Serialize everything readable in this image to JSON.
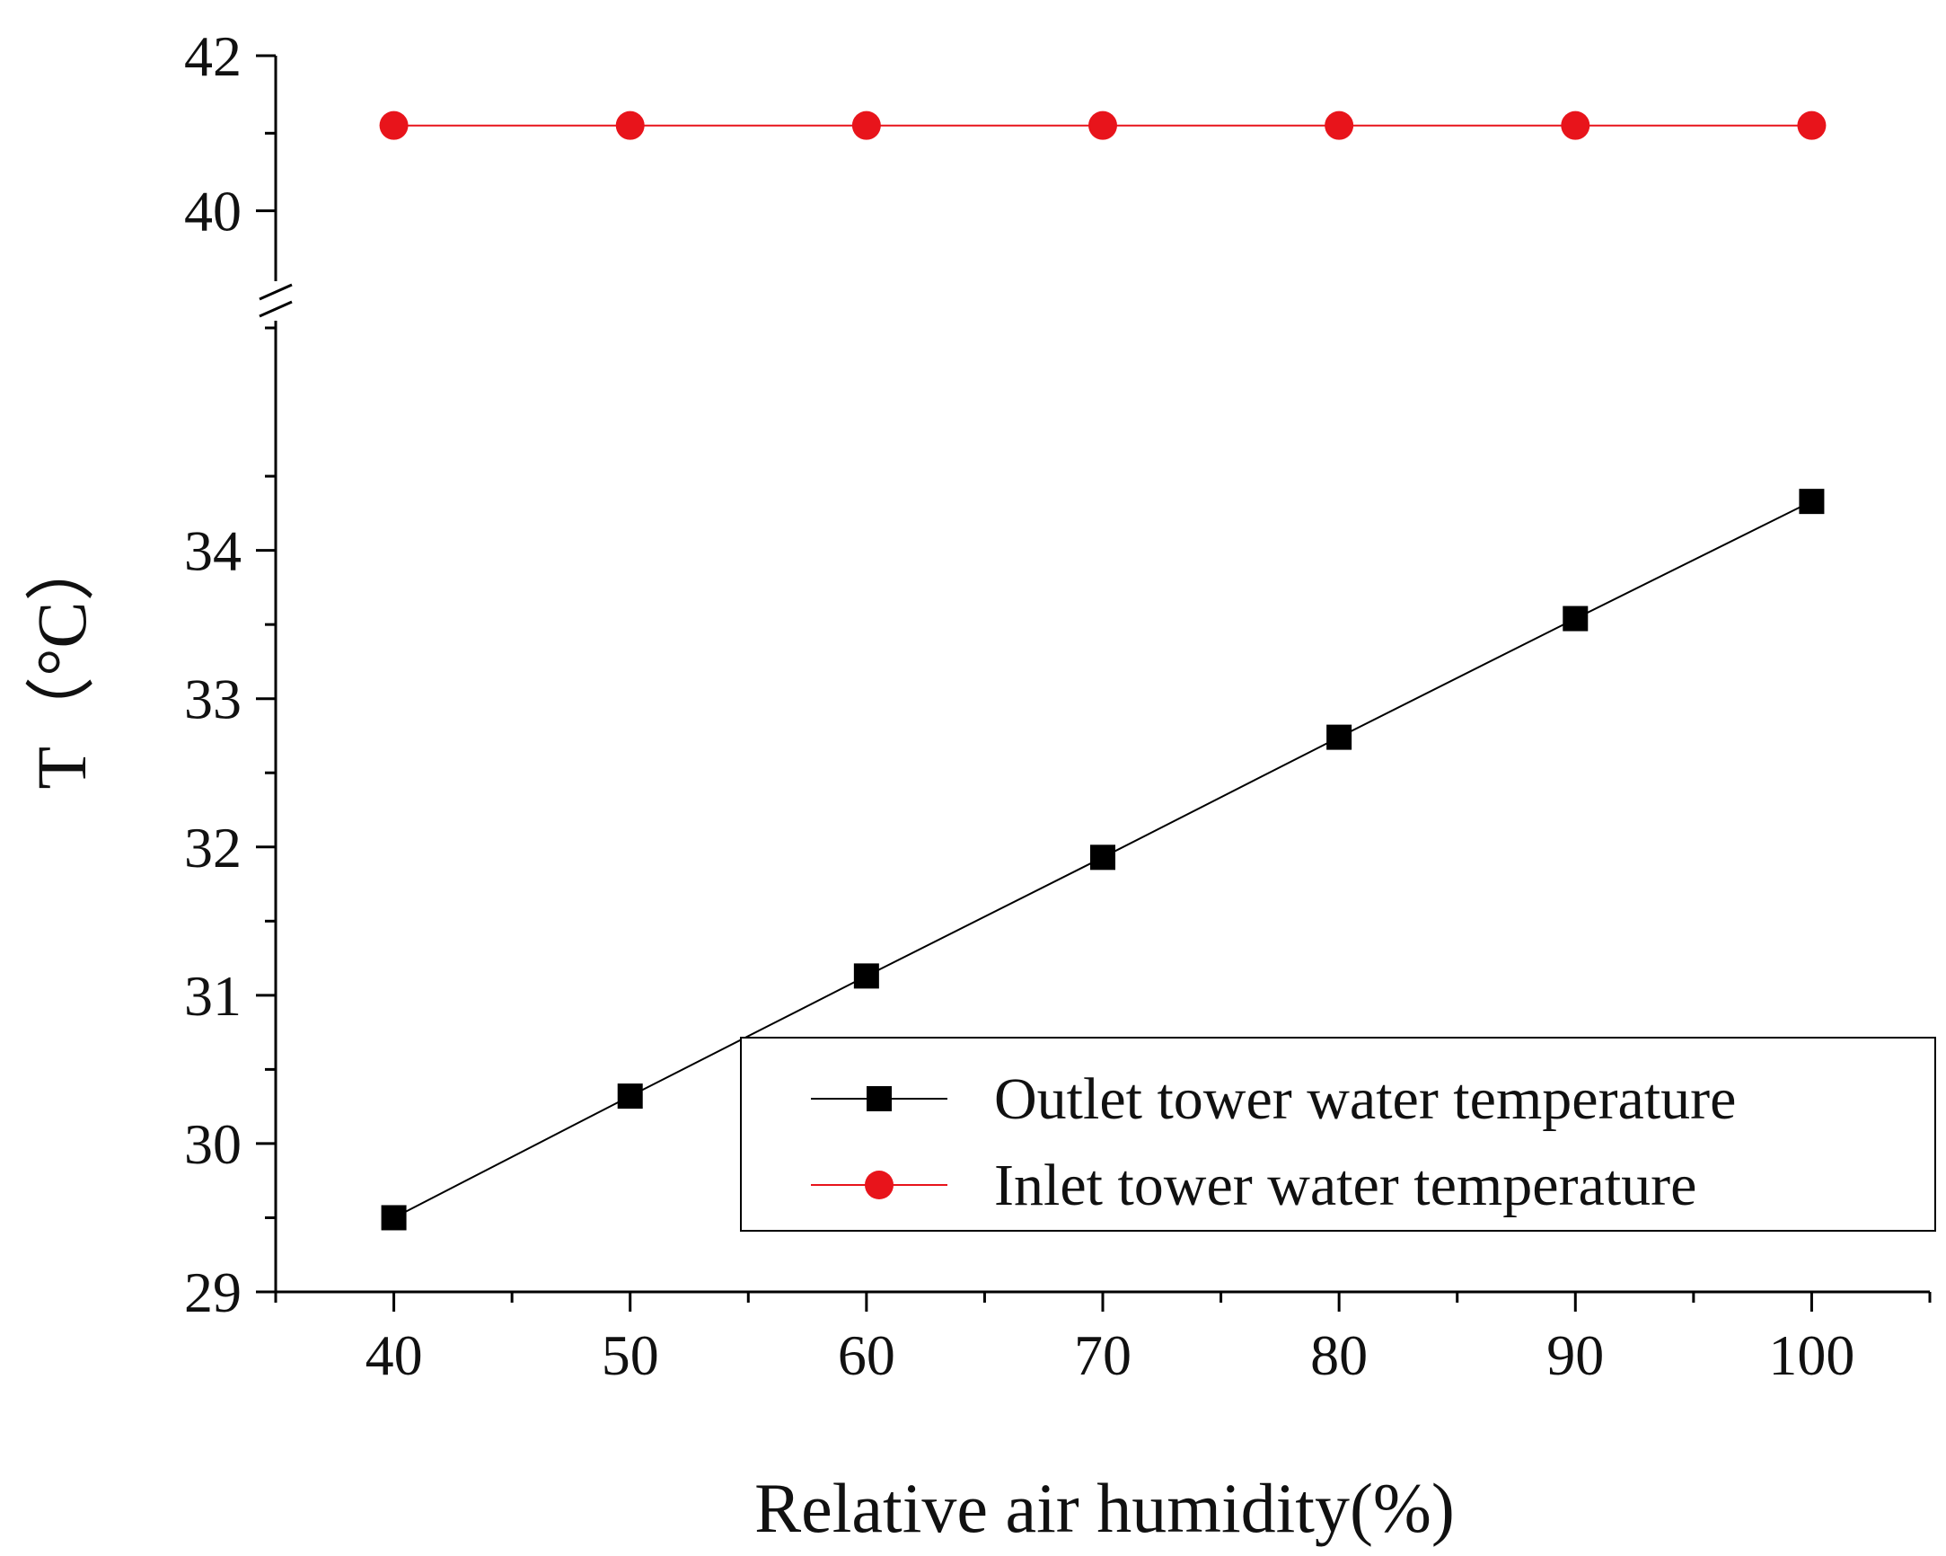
{
  "chart_data": {
    "type": "line",
    "xlabel": "Relative air humidity(%)",
    "ylabel": "T（°C）",
    "x": [
      40,
      50,
      60,
      70,
      80,
      90,
      100
    ],
    "xlim": [
      35,
      105
    ],
    "xticks": [
      "40",
      "50",
      "60",
      "70",
      "80",
      "90",
      "100"
    ],
    "y_axis_break": true,
    "ylim_lower": [
      29,
      35.5
    ],
    "ylim_upper": [
      39.3,
      42
    ],
    "yticks_lower": [
      "29",
      "30",
      "31",
      "32",
      "33",
      "34"
    ],
    "yticks_upper": [
      "40",
      "42"
    ],
    "grid": false,
    "legend_position": "lower-right",
    "series": [
      {
        "name": "Outlet tower water temperature",
        "marker": "square",
        "color": "#000000",
        "values": [
          29.5,
          30.32,
          31.13,
          31.93,
          32.74,
          33.54,
          34.33
        ]
      },
      {
        "name": "Inlet tower water temperature",
        "marker": "circle",
        "color": "#e8141b",
        "values": [
          41.1,
          41.1,
          41.1,
          41.1,
          41.1,
          41.1,
          41.1
        ]
      }
    ]
  }
}
